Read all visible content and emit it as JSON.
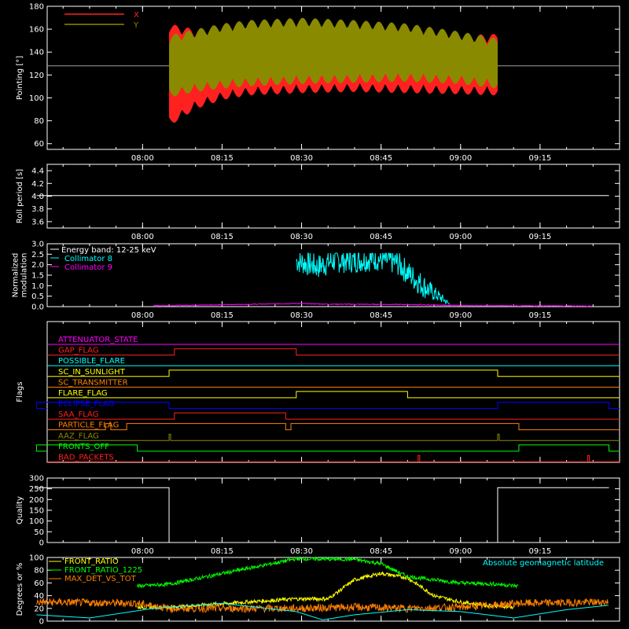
{
  "colors": {
    "background": "#000000",
    "axis": "#ffffff",
    "red": "#ff2020",
    "olive": "#8a8a00",
    "cyan": "#00ffff",
    "magenta": "#ff00ff",
    "yellow": "#ffff00",
    "green": "#00ff00",
    "orange": "#ff8000",
    "blue": "#0000ff",
    "gray": "#a0a0a0"
  },
  "time_axis": {
    "tick_labels": [
      "08:00",
      "08:15",
      "08:30",
      "08:45",
      "09:00",
      "09:15"
    ],
    "tick_hours": [
      8.0,
      8.25,
      8.5,
      8.75,
      9.0,
      9.25
    ],
    "range_hours": [
      7.7,
      9.5
    ]
  },
  "chart_data": [
    {
      "type": "line",
      "panel": "pointing",
      "ylabel": "Pointing [°]",
      "ylim": [
        55,
        180
      ],
      "yticks": [
        60,
        80,
        100,
        120,
        140,
        160,
        180
      ],
      "reference_line": 128,
      "series": [
        {
          "name": "X",
          "color": "#ff2020",
          "kind": "envelope",
          "x": [
            "08:05",
            "08:10",
            "08:15",
            "08:20",
            "08:30",
            "08:40",
            "08:50",
            "09:00",
            "09:07"
          ],
          "upper": [
            165,
            160,
            155,
            153,
            152,
            153,
            154,
            155,
            156
          ],
          "lower": [
            75,
            90,
            98,
            102,
            104,
            105,
            104,
            103,
            102
          ]
        },
        {
          "name": "Y",
          "color": "#8a8a00",
          "kind": "envelope",
          "x": [
            "08:05",
            "08:10",
            "08:15",
            "08:20",
            "08:30",
            "08:40",
            "08:50",
            "09:00",
            "09:07"
          ],
          "upper": [
            155,
            160,
            165,
            168,
            170,
            168,
            165,
            158,
            152
          ],
          "lower": [
            100,
            105,
            108,
            110,
            112,
            113,
            114,
            112,
            108
          ]
        }
      ]
    },
    {
      "type": "line",
      "panel": "roll",
      "ylabel": "Roll period [s]",
      "ylim": [
        3.5,
        4.5
      ],
      "yticks": [
        3.6,
        3.8,
        4.0,
        4.2,
        4.4
      ],
      "series": [
        {
          "color": "#ffffff",
          "x": [
            "07:40",
            "09:28"
          ],
          "y": [
            4.01,
            4.01
          ]
        }
      ]
    },
    {
      "type": "line",
      "panel": "modulation",
      "ylabel": "Normalized\nmodulation",
      "ylim": [
        0,
        3.0
      ],
      "yticks": [
        0.0,
        0.5,
        1.0,
        1.5,
        2.0,
        2.5,
        3.0
      ],
      "annotation": "Energy band: 12-25 keV",
      "series": [
        {
          "name": "Collimator 8",
          "color": "#00ffff",
          "x": [
            "08:29",
            "08:33",
            "08:36",
            "08:40",
            "08:44",
            "08:48",
            "08:51",
            "08:54",
            "08:57",
            "08:58"
          ],
          "y": [
            2.2,
            1.9,
            2.2,
            2.2,
            2.3,
            2.1,
            1.4,
            0.8,
            0.3,
            0.1
          ]
        },
        {
          "name": "Collimator 9",
          "color": "#ff00ff",
          "x": [
            "08:02",
            "08:05",
            "08:29",
            "08:35",
            "08:50",
            "09:00",
            "09:25"
          ],
          "y": [
            0.05,
            0.05,
            0.15,
            0.12,
            0.1,
            0.05,
            0.03
          ]
        }
      ]
    },
    {
      "type": "timeline",
      "panel": "flags",
      "ylabel": "Flags",
      "flags": [
        {
          "name": "ATTENUATOR_STATE",
          "color": "#ff00ff",
          "high": []
        },
        {
          "name": "GAP_FLAG",
          "color": "#ff2020",
          "high": [
            [
              "08:06",
              "08:29"
            ]
          ]
        },
        {
          "name": "POSSIBLE_FLARE",
          "color": "#00ffff",
          "high": []
        },
        {
          "name": "SC_IN_SUNLIGHT",
          "color": "#ffff00",
          "high": [
            [
              "08:05",
              "09:07"
            ]
          ]
        },
        {
          "name": "SC_TRANSMITTER",
          "color": "#ff8000",
          "high": []
        },
        {
          "name": "FLARE_FLAG",
          "color": "#ffff00",
          "high": [
            [
              "08:29",
              "08:50"
            ]
          ]
        },
        {
          "name": "ECLIPSE_FLAG",
          "color": "#0000ff",
          "high": [
            [
              "07:40",
              "08:05"
            ],
            [
              "09:07",
              "09:28"
            ]
          ]
        },
        {
          "name": "SAA_FLAG",
          "color": "#ff2020",
          "high": [
            [
              "08:06",
              "08:27"
            ]
          ]
        },
        {
          "name": "PARTICLE_FLAG",
          "color": "#ff8000",
          "high": [
            [
              "07:53",
              "07:54"
            ],
            [
              "07:57",
              "08:27"
            ],
            [
              "08:28",
              "09:11"
            ]
          ]
        },
        {
          "name": "AAZ_FLAG",
          "color": "#8a8a00",
          "high": [
            [
              "08:05",
              "08:05"
            ],
            [
              "09:07",
              "09:07"
            ]
          ]
        },
        {
          "name": "FRONTS_OFF",
          "color": "#00ff00",
          "high": [
            [
              "07:40",
              "07:59"
            ],
            [
              "09:11",
              "09:28"
            ]
          ]
        },
        {
          "name": "BAD_PACKETS",
          "color": "#ff2020",
          "high": [
            [
              "08:52",
              "08:52"
            ],
            [
              "09:24",
              "09:24"
            ]
          ]
        }
      ]
    },
    {
      "type": "line",
      "panel": "quality",
      "ylabel": "Quality",
      "ylim": [
        0,
        300
      ],
      "yticks": [
        0,
        50,
        100,
        150,
        200,
        250,
        300
      ],
      "series": [
        {
          "color": "#ffffff",
          "x": [
            "07:40",
            "08:05",
            "08:05",
            "09:07",
            "09:07",
            "09:28"
          ],
          "y": [
            255,
            255,
            0,
            0,
            255,
            255
          ]
        }
      ]
    },
    {
      "type": "line",
      "panel": "ratios",
      "ylabel": "Degrees or %",
      "ylim": [
        0,
        100
      ],
      "yticks": [
        0,
        20,
        40,
        60,
        80,
        100
      ],
      "annotation": "Absolute geomagnetic latitude",
      "series": [
        {
          "name": "FRONT_RATIO",
          "color": "#ffff00",
          "x": [
            "07:59",
            "08:05",
            "08:29",
            "08:35",
            "08:40",
            "08:45",
            "08:50",
            "08:55",
            "09:00",
            "09:05",
            "09:10"
          ],
          "y": [
            22,
            22,
            35,
            35,
            65,
            75,
            68,
            40,
            30,
            25,
            22
          ]
        },
        {
          "name": "FRONT_RATIO_1225",
          "color": "#00ff00",
          "x": [
            "07:59",
            "08:05",
            "08:29",
            "08:40",
            "08:45",
            "08:50",
            "09:00",
            "09:07",
            "09:11"
          ],
          "y": [
            55,
            58,
            98,
            97,
            90,
            70,
            60,
            58,
            55
          ]
        },
        {
          "name": "MAX_DET_VS_TOT",
          "color": "#ff8000",
          "x": [
            "07:40",
            "07:59",
            "08:05",
            "08:29",
            "08:40",
            "08:50",
            "09:00",
            "09:11",
            "09:28"
          ],
          "y": [
            30,
            28,
            20,
            20,
            22,
            20,
            22,
            28,
            30
          ]
        },
        {
          "color": "#00ffff",
          "x": [
            "07:40",
            "07:50",
            "08:02",
            "08:15",
            "08:29",
            "08:34",
            "08:40",
            "08:50",
            "09:00",
            "09:10",
            "09:20",
            "09:28"
          ],
          "y": [
            10,
            5,
            20,
            28,
            15,
            2,
            10,
            18,
            15,
            5,
            18,
            25
          ]
        }
      ]
    }
  ]
}
